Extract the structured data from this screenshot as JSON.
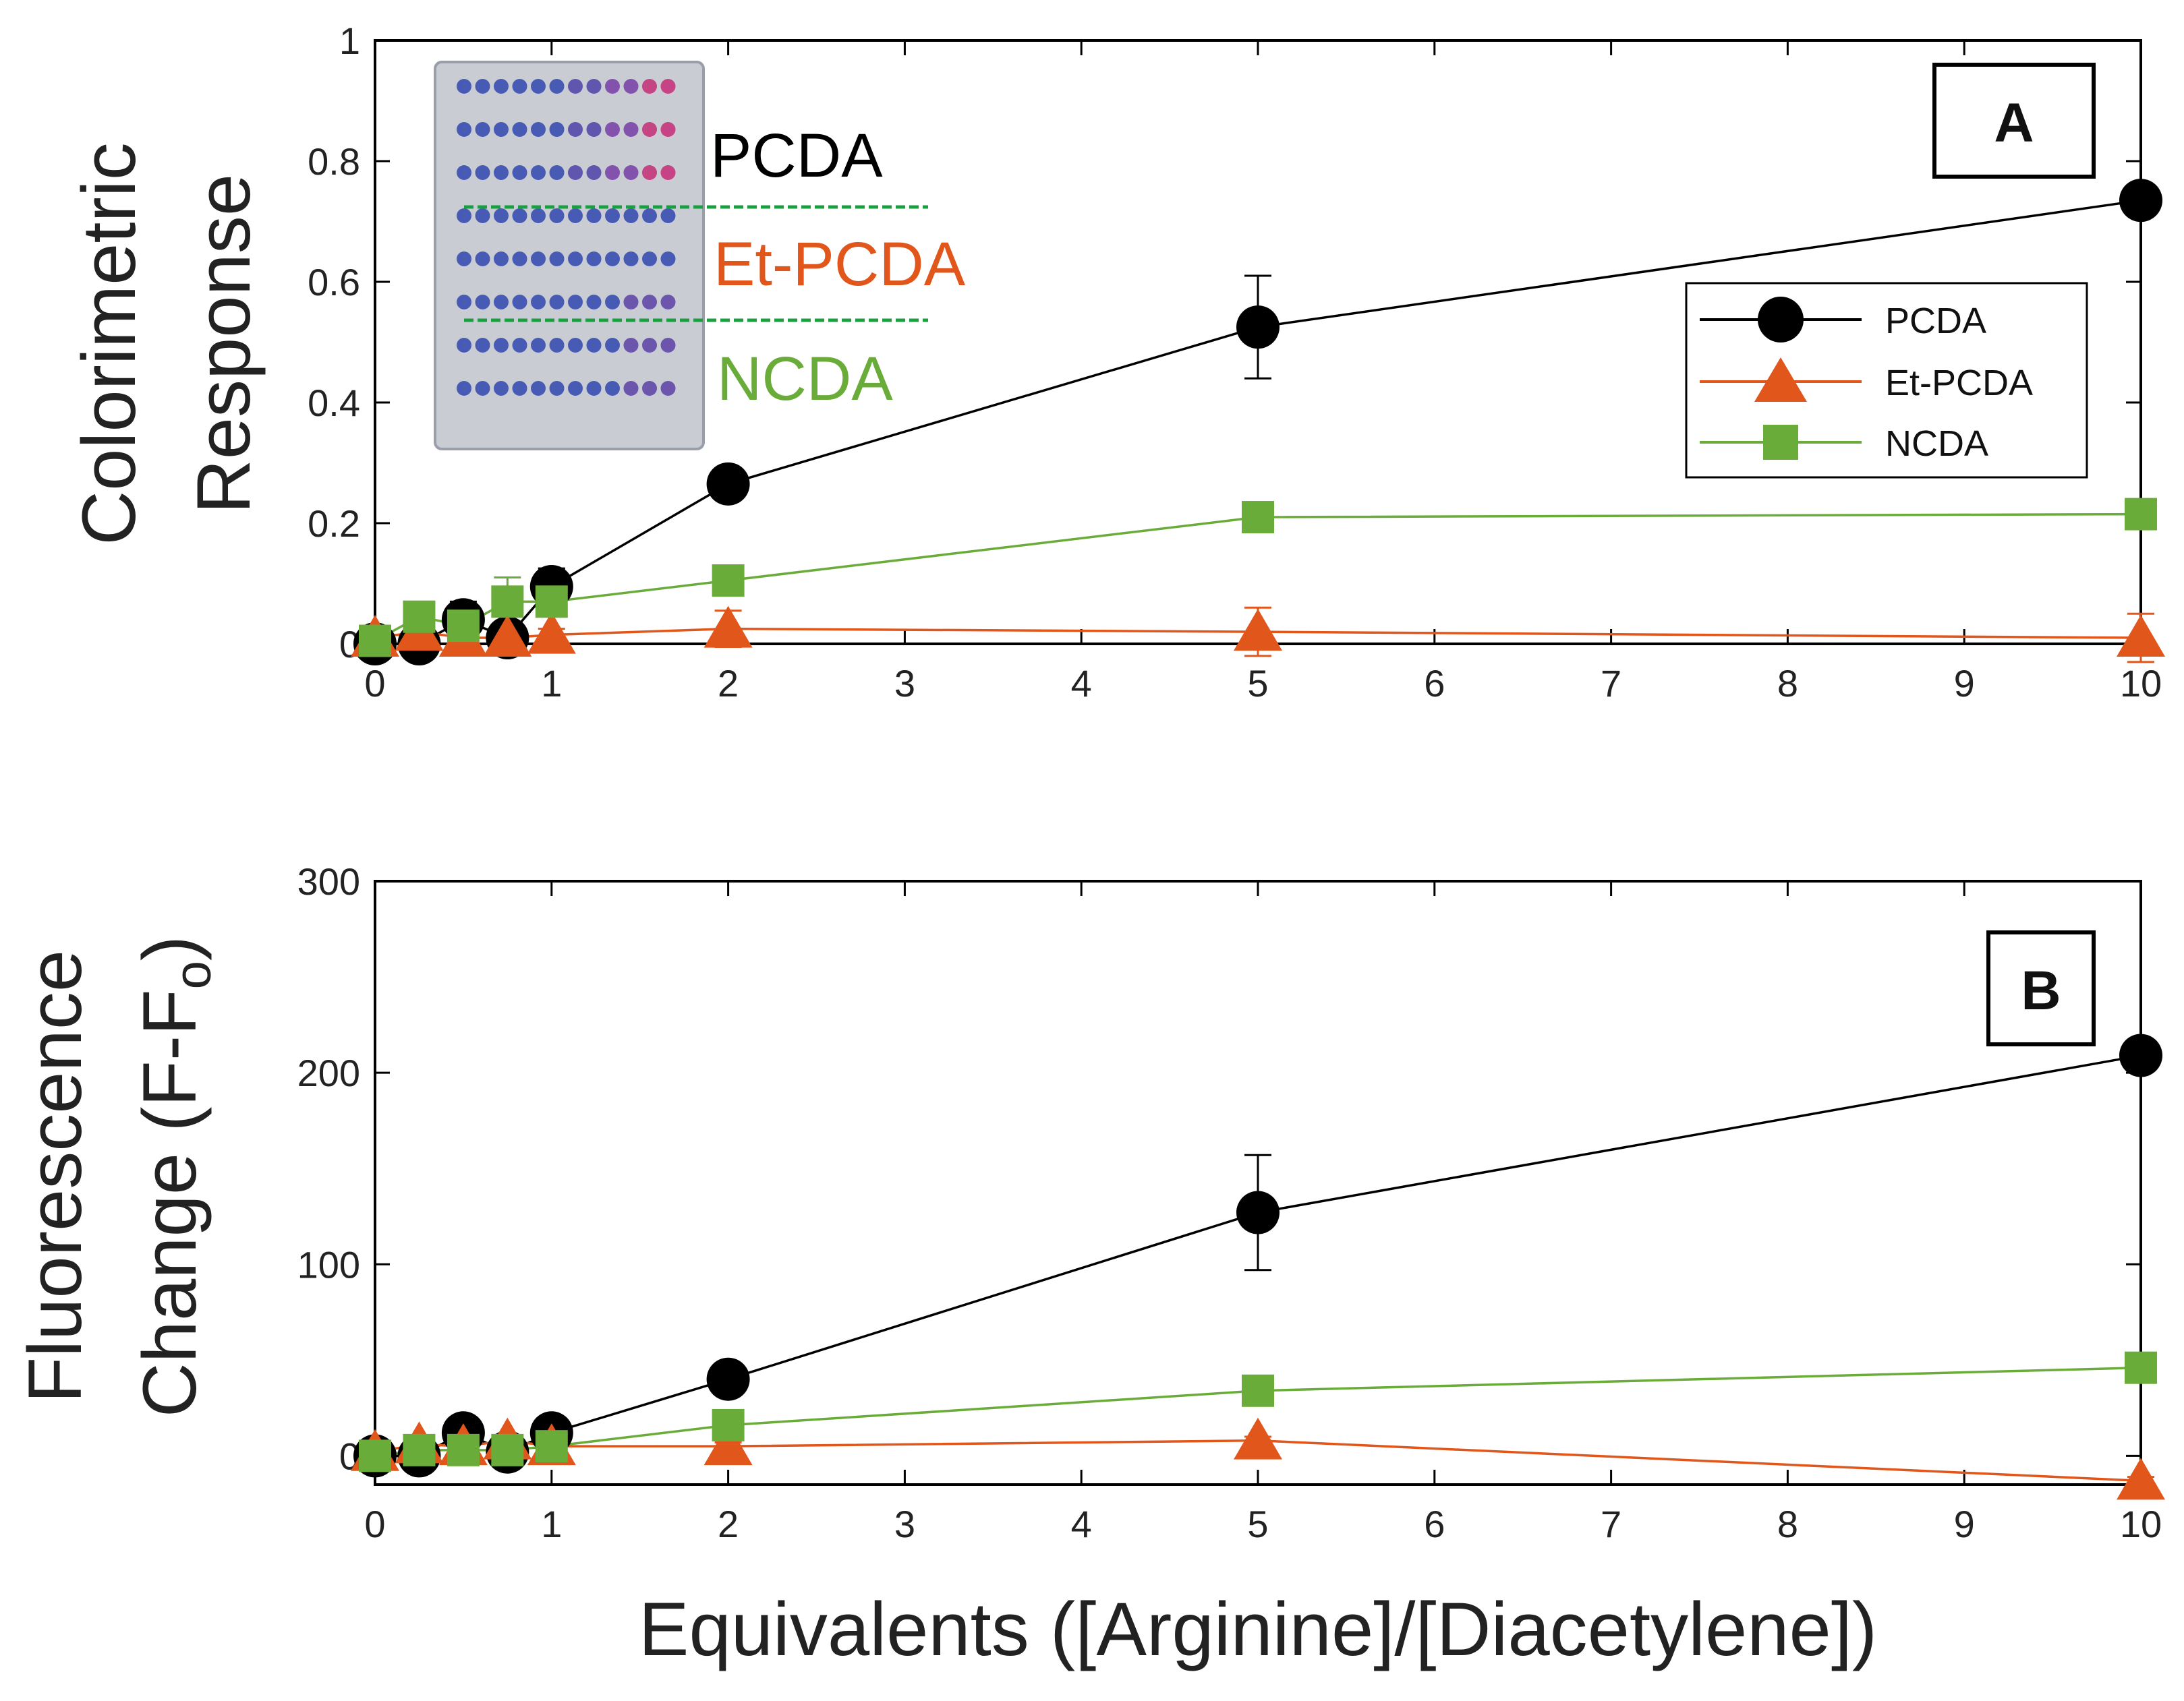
{
  "colors": {
    "PCDA": "#000000",
    "Et-PCDA": "#e0561b",
    "NCDA": "#6aac3a",
    "inset_divider": "#18a040"
  },
  "inset": {
    "labels": [
      "PCDA",
      "Et-PCDA",
      "NCDA"
    ],
    "description": "photo-of-96-well-plate"
  },
  "shared_xlabel": "Equivalents ([Arginine]/[Diacetylene])",
  "chart_data": [
    {
      "type": "line",
      "panel_label": "A",
      "ylabel_lines": [
        "Colorimetric",
        "Response"
      ],
      "xlabel": "",
      "x_ticks": [
        0,
        1,
        2,
        3,
        4,
        5,
        6,
        7,
        8,
        9,
        10
      ],
      "y_ticks": [
        0,
        0.2,
        0.4,
        0.6,
        0.8,
        1
      ],
      "y_tick_labels": [
        "0",
        "0.2",
        "0.4",
        "0.6",
        "0.8",
        "1"
      ],
      "xlim": [
        0,
        10
      ],
      "ylim": [
        0,
        1
      ],
      "legend": {
        "placement": "upper-right",
        "entries": [
          "PCDA",
          "Et-PCDA",
          "NCDA"
        ]
      },
      "series": [
        {
          "name": "PCDA",
          "marker": "circle",
          "x": [
            0,
            0.25,
            0.5,
            0.75,
            1,
            2,
            5,
            10
          ],
          "y": [
            0.0,
            0.0,
            0.04,
            0.01,
            0.095,
            0.265,
            0.525,
            0.735
          ],
          "err": [
            0.01,
            0.01,
            0.03,
            0.02,
            0.03,
            0.015,
            0.085,
            0.02
          ]
        },
        {
          "name": "Et-PCDA",
          "marker": "triangle",
          "x": [
            0,
            0.25,
            0.5,
            0.75,
            1,
            2,
            5,
            10
          ],
          "y": [
            0.01,
            0.02,
            0.01,
            0.01,
            0.015,
            0.025,
            0.02,
            0.01
          ],
          "err": [
            0.01,
            0.01,
            0.01,
            0.01,
            0.01,
            0.03,
            0.04,
            0.04
          ]
        },
        {
          "name": "NCDA",
          "marker": "square",
          "x": [
            0,
            0.25,
            0.5,
            0.75,
            1,
            2,
            5,
            10
          ],
          "y": [
            0.005,
            0.045,
            0.03,
            0.07,
            0.07,
            0.105,
            0.21,
            0.215
          ],
          "err": [
            0.01,
            0.01,
            0.02,
            0.04,
            0.02,
            0.01,
            0.015,
            0.01
          ]
        }
      ]
    },
    {
      "type": "line",
      "panel_label": "B",
      "ylabel_lines": [
        "Fluorescence",
        "Change (F-F"
      ],
      "ylabel_subscript": "o",
      "ylabel_suffix": ")",
      "xlabel": "Equivalents ([Arginine]/[Diacetylene])",
      "x_ticks": [
        0,
        1,
        2,
        3,
        4,
        5,
        6,
        7,
        8,
        9,
        10
      ],
      "y_ticks": [
        0,
        100,
        200,
        300
      ],
      "y_tick_labels": [
        "0",
        "100",
        "200",
        "300"
      ],
      "xlim": [
        0,
        10
      ],
      "ylim": [
        -15,
        300
      ],
      "series": [
        {
          "name": "PCDA",
          "marker": "circle",
          "x": [
            0,
            0.25,
            0.5,
            0.75,
            1,
            2,
            5,
            10
          ],
          "y": [
            0,
            0,
            12,
            2,
            12,
            40,
            127,
            209
          ],
          "err": [
            2,
            2,
            3,
            2,
            3,
            3,
            30,
            3
          ]
        },
        {
          "name": "Et-PCDA",
          "marker": "triangle",
          "x": [
            0,
            0.25,
            0.5,
            0.75,
            1,
            2,
            5,
            10
          ],
          "y": [
            2,
            6,
            5,
            8,
            5,
            5,
            8,
            -13
          ],
          "err": [
            2,
            2,
            2,
            2,
            2,
            2,
            2,
            2
          ]
        },
        {
          "name": "NCDA",
          "marker": "square",
          "x": [
            0,
            0.25,
            0.5,
            0.75,
            1,
            2,
            5,
            10
          ],
          "y": [
            0,
            3,
            3,
            3,
            5,
            16,
            34,
            46
          ],
          "err": [
            2,
            2,
            2,
            2,
            2,
            2,
            7,
            2
          ]
        }
      ]
    }
  ]
}
